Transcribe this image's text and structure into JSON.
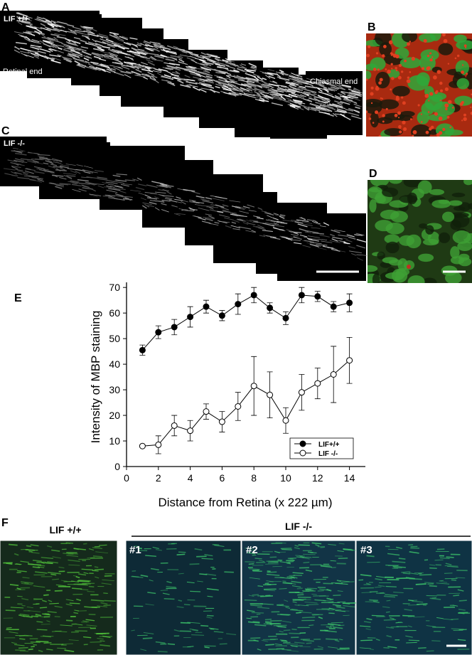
{
  "panels": {
    "a": {
      "label": "A",
      "genotype": "LIF +/+",
      "left": "Retinal end",
      "right": "Chiasmal end"
    },
    "b": {
      "label": "B"
    },
    "c": {
      "label": "C",
      "genotype": "LIF -/-"
    },
    "d": {
      "label": "D"
    },
    "e": {
      "label": "E"
    },
    "f": {
      "label": "F",
      "control": "LIF +/+",
      "mutant": "LIF -/-",
      "fields": [
        "#1",
        "#2",
        "#3"
      ]
    }
  },
  "chart_data": {
    "type": "line",
    "y_label": "Intensity of MBP staining",
    "x_label": "Distance from Retina (x 222 µm)",
    "xlim": [
      0,
      15
    ],
    "xticks": [
      0,
      2,
      4,
      6,
      8,
      10,
      12,
      14
    ],
    "ylim": [
      0,
      72
    ],
    "yticks": [
      0,
      10,
      20,
      30,
      40,
      50,
      60,
      70
    ],
    "legend": "lower right",
    "series": [
      {
        "name": "LIF+/+",
        "color": "#000000",
        "marker": "filled",
        "x": [
          1,
          2,
          3,
          4,
          5,
          6,
          7,
          8,
          9,
          10,
          11,
          12,
          13,
          14
        ],
        "values": [
          45.5,
          52.5,
          54.5,
          58.5,
          62.5,
          59,
          63.5,
          67,
          62,
          58,
          67,
          66.5,
          62.5,
          64
        ],
        "errors": [
          2,
          2.5,
          3,
          4,
          2.5,
          2,
          4,
          3,
          2,
          2.5,
          3,
          2,
          2,
          3.5
        ]
      },
      {
        "name": "LIF -/-",
        "color": "#000000",
        "marker": "open",
        "x": [
          1,
          2,
          3,
          4,
          5,
          6,
          7,
          8,
          9,
          10,
          11,
          12,
          13,
          14
        ],
        "values": [
          8,
          8.5,
          16,
          14,
          21.5,
          17.5,
          23.5,
          31.5,
          28,
          18,
          29,
          32.5,
          36,
          41.5
        ],
        "errors": [
          0.5,
          3.5,
          4,
          4,
          3,
          4,
          5.5,
          11.5,
          9,
          5,
          7,
          6,
          11,
          9
        ]
      }
    ]
  }
}
